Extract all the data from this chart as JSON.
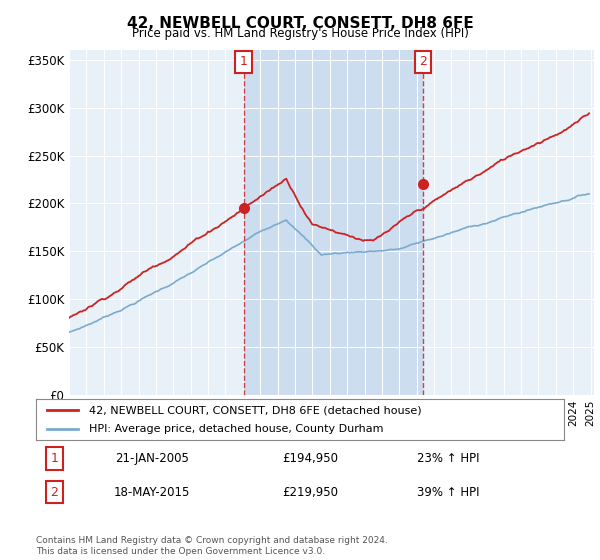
{
  "title": "42, NEWBELL COURT, CONSETT, DH8 6FE",
  "subtitle": "Price paid vs. HM Land Registry's House Price Index (HPI)",
  "ylim": [
    0,
    360000
  ],
  "yticks": [
    0,
    50000,
    100000,
    150000,
    200000,
    250000,
    300000,
    350000
  ],
  "ytick_labels": [
    "£0",
    "£50K",
    "£100K",
    "£150K",
    "£200K",
    "£250K",
    "£300K",
    "£350K"
  ],
  "x_start_year": 1995,
  "x_end_year": 2025,
  "hpi_color": "#7aabcc",
  "price_color": "#cc2222",
  "vline_color": "#cc2222",
  "annotation_box_color": "#cc2222",
  "bg_color": "#e8f0f8",
  "shade_color": "#ccddf0",
  "sale1_year": 2005.05,
  "sale1_price": 194950,
  "sale1_label": "1",
  "sale2_year": 2015.37,
  "sale2_price": 219950,
  "sale2_label": "2",
  "legend_line1": "42, NEWBELL COURT, CONSETT, DH8 6FE (detached house)",
  "legend_line2": "HPI: Average price, detached house, County Durham",
  "table_row1_num": "1",
  "table_row1_date": "21-JAN-2005",
  "table_row1_price": "£194,950",
  "table_row1_hpi": "23% ↑ HPI",
  "table_row2_num": "2",
  "table_row2_date": "18-MAY-2015",
  "table_row2_price": "£219,950",
  "table_row2_hpi": "39% ↑ HPI",
  "footer": "Contains HM Land Registry data © Crown copyright and database right 2024.\nThis data is licensed under the Open Government Licence v3.0."
}
